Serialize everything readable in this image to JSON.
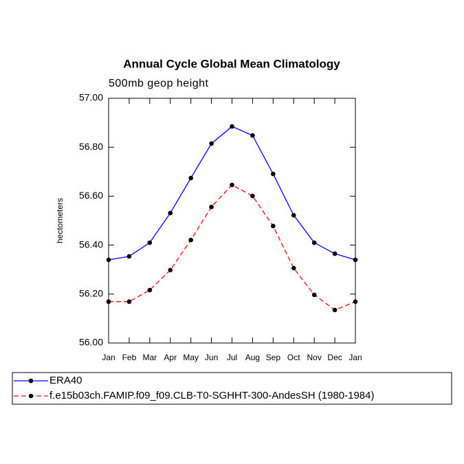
{
  "chart_data": {
    "type": "line",
    "title": "Annual Cycle Global Mean Climatology",
    "subtitle": "500mb geop height",
    "y_label": "hectometers",
    "categories": [
      "Jan",
      "Feb",
      "Mar",
      "Apr",
      "May",
      "Jun",
      "Jul",
      "Aug",
      "Sep",
      "Oct",
      "Nov",
      "Dec",
      "Jan"
    ],
    "series": [
      {
        "name": "ERA40",
        "color": "#0000ff",
        "dash": false,
        "values": [
          56.34,
          56.354,
          56.41,
          56.531,
          56.674,
          56.815,
          56.885,
          56.848,
          56.691,
          56.522,
          56.41,
          56.365,
          56.34
        ]
      },
      {
        "name": "f.e15b03ch.FAMIP.f09_f09.CLB-T0-SGHHT-300-AndesSH (1980-1984)",
        "color": "#ff0000",
        "dash": true,
        "values": [
          56.169,
          56.169,
          56.216,
          56.298,
          56.421,
          56.556,
          56.646,
          56.601,
          56.478,
          56.306,
          56.197,
          56.135,
          56.169
        ]
      }
    ],
    "ylim": [
      56,
      57
    ],
    "yticks": [
      {
        "value": 56,
        "label": "56.00"
      },
      {
        "value": 56.2,
        "label": "56.20"
      },
      {
        "value": 56.4,
        "label": "56.40"
      },
      {
        "value": 56.6,
        "label": "56.60"
      },
      {
        "value": 56.8,
        "label": "56.80"
      },
      {
        "value": 57,
        "label": "57.00"
      }
    ],
    "markers": true
  }
}
